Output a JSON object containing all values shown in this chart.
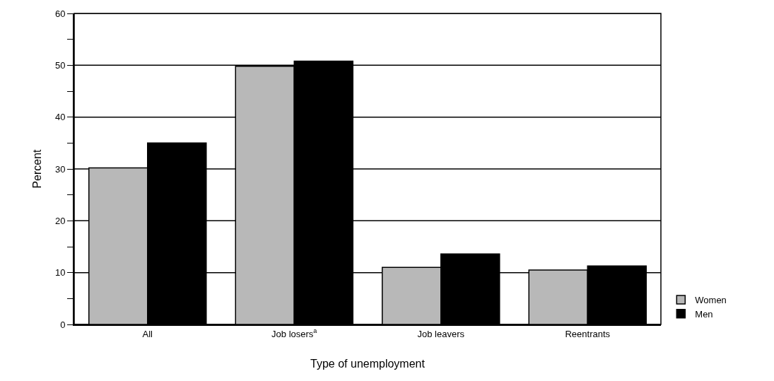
{
  "chart_data": {
    "type": "bar",
    "xlabel": "Type of unemployment",
    "ylabel": "Percent",
    "categories": [
      "All",
      "Job losers$^{a}$",
      "Job leavers",
      "Reentrants"
    ],
    "series": [
      {
        "name": "Women",
        "color": "#b8b8b8",
        "values": [
          30.2,
          49.8,
          11.0,
          10.5
        ]
      },
      {
        "name": "Men",
        "color": "#000000",
        "values": [
          35.0,
          50.8,
          13.6,
          11.3
        ]
      }
    ],
    "ylim": [
      0,
      60
    ],
    "yticks": [
      0,
      {
        "value": 5,
        "label": null
      },
      10,
      {
        "value": 15,
        "label": null
      },
      20,
      {
        "value": 25,
        "label": null
      },
      30,
      {
        "value": 35,
        "label": null
      },
      40,
      {
        "value": 45,
        "label": null
      },
      50,
      {
        "value": 55,
        "label": null
      },
      60
    ],
    "grid": "y",
    "legend": "bottom right"
  }
}
